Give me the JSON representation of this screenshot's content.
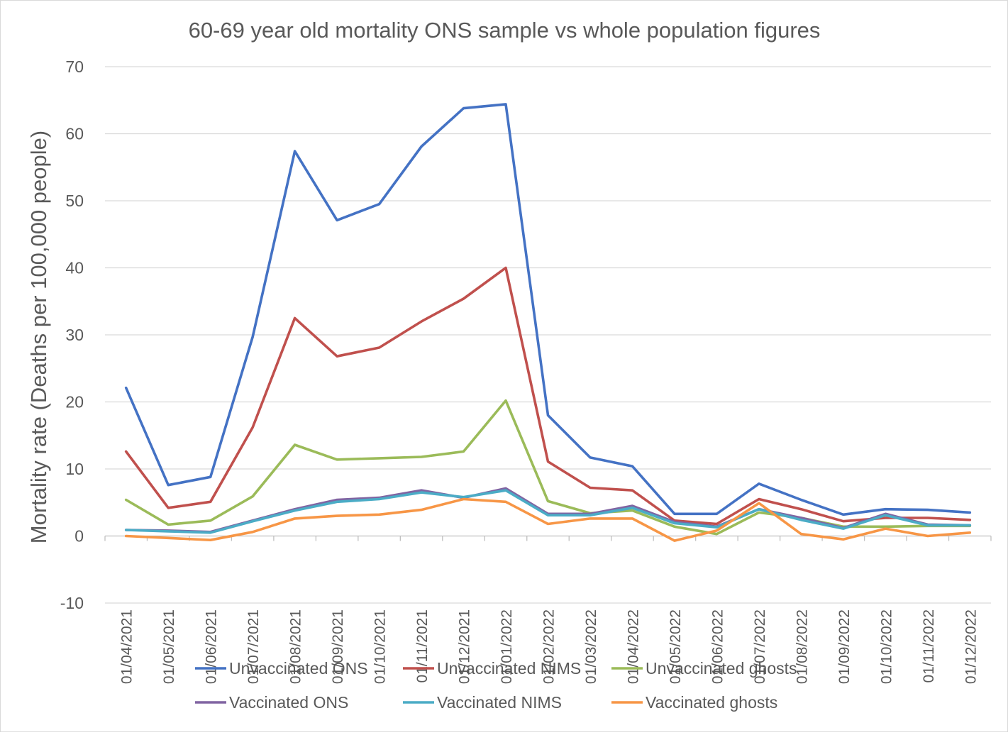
{
  "chart_data": {
    "type": "line",
    "title": "60-69 year old mortality ONS sample vs whole population figures",
    "xlabel": "",
    "ylabel": "Mortality rate (Deaths per 100,000 people)",
    "ylim": [
      -10,
      70
    ],
    "yticks": [
      -10,
      0,
      10,
      20,
      30,
      40,
      50,
      60,
      70
    ],
    "grid": true,
    "legend_position": "bottom",
    "categories": [
      "01/04/2021",
      "01/05/2021",
      "01/06/2021",
      "01/07/2021",
      "01/08/2021",
      "01/09/2021",
      "01/10/2021",
      "01/11/2021",
      "01/12/2021",
      "01/01/2022",
      "01/02/2022",
      "01/03/2022",
      "01/04/2022",
      "01/05/2022",
      "01/06/2022",
      "01/07/2022",
      "01/08/2022",
      "01/09/2022",
      "01/10/2022",
      "01/11/2022",
      "01/12/2022"
    ],
    "series": [
      {
        "name": "Unvaccinated ONS",
        "color": "#4472c4",
        "values": [
          22.1,
          7.6,
          8.8,
          29.7,
          57.4,
          47.1,
          49.5,
          58.1,
          63.8,
          64.4,
          18.0,
          11.7,
          10.4,
          3.3,
          3.3,
          7.8,
          5.4,
          3.2,
          4.0,
          3.9,
          3.5
        ]
      },
      {
        "name": "Unvaccinated NIMS",
        "color": "#c0504d",
        "values": [
          12.6,
          4.2,
          5.1,
          16.2,
          32.5,
          26.8,
          28.1,
          32.0,
          35.4,
          40.0,
          11.1,
          7.2,
          6.8,
          2.3,
          1.8,
          5.5,
          4.0,
          2.2,
          2.7,
          2.7,
          2.4
        ]
      },
      {
        "name": "Unvaccinated ghosts",
        "color": "#9bbb59",
        "values": [
          5.4,
          1.7,
          2.3,
          5.9,
          13.6,
          11.4,
          11.6,
          11.8,
          12.6,
          20.2,
          5.2,
          3.4,
          3.8,
          1.4,
          0.3,
          3.5,
          2.7,
          1.4,
          1.4,
          1.5,
          1.5
        ]
      },
      {
        "name": "Vaccinated ONS",
        "color": "#8064a2",
        "values": [
          0.9,
          0.8,
          0.6,
          2.3,
          4.0,
          5.4,
          5.7,
          6.8,
          5.7,
          7.1,
          3.3,
          3.3,
          4.5,
          2.1,
          1.4,
          4.0,
          2.7,
          1.2,
          3.3,
          1.7,
          1.6
        ]
      },
      {
        "name": "Vaccinated NIMS",
        "color": "#4bacc6",
        "values": [
          0.9,
          0.7,
          0.5,
          2.2,
          3.8,
          5.1,
          5.5,
          6.5,
          5.8,
          6.8,
          3.1,
          3.1,
          4.2,
          1.9,
          1.3,
          4.0,
          2.4,
          1.1,
          3.1,
          1.6,
          1.6
        ]
      },
      {
        "name": "Vaccinated ghosts",
        "color": "#f79646",
        "values": [
          0.0,
          -0.3,
          -0.6,
          0.6,
          2.6,
          3.0,
          3.2,
          3.9,
          5.5,
          5.1,
          1.8,
          2.6,
          2.6,
          -0.7,
          0.8,
          4.9,
          0.3,
          -0.5,
          1.1,
          0.0,
          0.5
        ]
      }
    ]
  }
}
